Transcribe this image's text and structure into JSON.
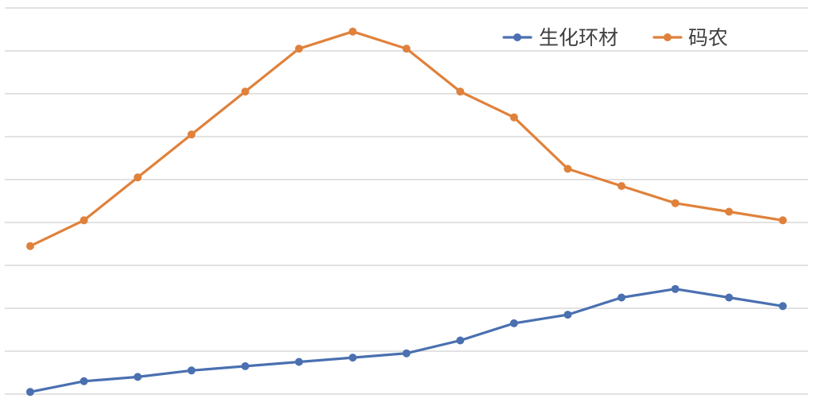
{
  "chart_data": {
    "type": "line",
    "title": "",
    "xlabel": "",
    "ylabel": "",
    "x": [
      1,
      2,
      3,
      4,
      5,
      6,
      7,
      8,
      9,
      10,
      11,
      12,
      13,
      14,
      15
    ],
    "ylim": [
      0,
      9
    ],
    "grid": true,
    "legend_position": "top-right",
    "series": [
      {
        "name": "生化环材",
        "color": "#4a70b0",
        "values": [
          0.05,
          0.3,
          0.4,
          0.55,
          0.65,
          0.75,
          0.85,
          0.95,
          1.25,
          1.65,
          1.85,
          2.25,
          2.45,
          2.25,
          2.05
        ]
      },
      {
        "name": "码农",
        "color": "#e0813b",
        "values": [
          3.45,
          4.05,
          5.05,
          6.05,
          7.05,
          8.05,
          8.45,
          8.05,
          7.05,
          6.45,
          5.25,
          4.85,
          4.45,
          4.25,
          4.05
        ]
      }
    ]
  }
}
